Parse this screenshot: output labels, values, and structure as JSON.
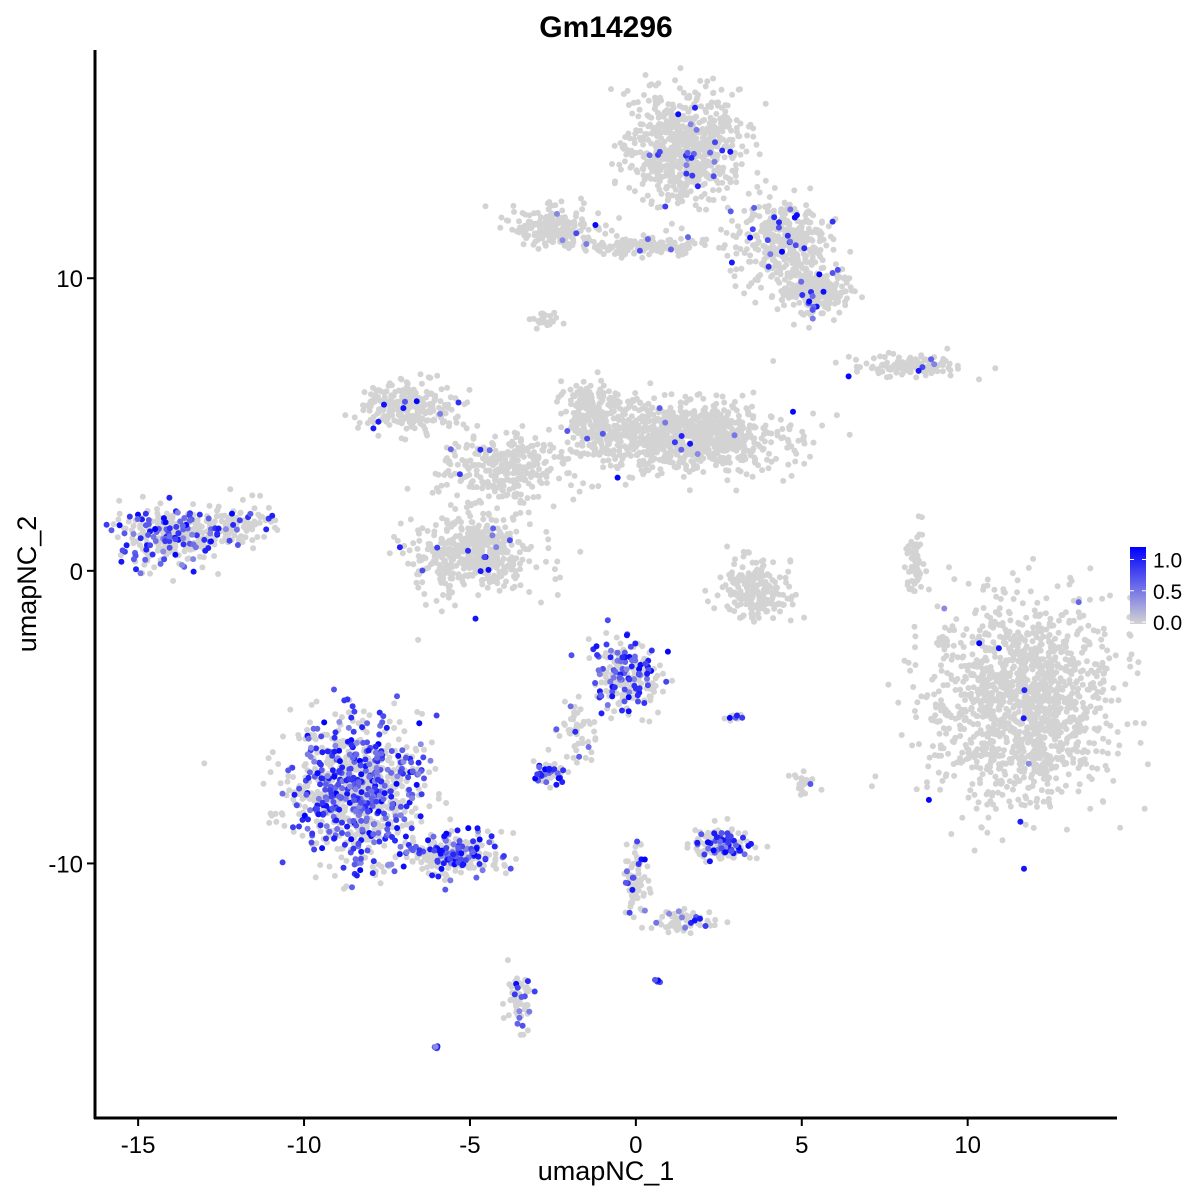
{
  "chart_data": {
    "type": "scatter",
    "title": "Gm14296",
    "xlabel": "umapNC_1",
    "ylabel": "umapNC_2",
    "xlim": [
      -16.3,
      14.5
    ],
    "ylim": [
      -18.7,
      17.8
    ],
    "xticks": [
      -15,
      -10,
      -5,
      0,
      5,
      10
    ],
    "yticks": [
      -10,
      0,
      10
    ],
    "xtick_labels": [
      "-15",
      "-10",
      "-5",
      "0",
      "5",
      "10"
    ],
    "ytick_labels": [
      "-10",
      "0",
      "10"
    ],
    "grid": false,
    "legend": {
      "position": "right",
      "type": "colorbar",
      "low_color": "#d3d3d3",
      "high_color": "#0000ff",
      "range": [
        0,
        1.2
      ],
      "breaks": [
        0.0,
        0.5,
        1.0
      ],
      "labels": [
        "0.0",
        "0.5",
        "1.0"
      ]
    },
    "clusters": [
      {
        "center": [
          1.4,
          14.5
        ],
        "spread": [
          1.4,
          1.6
        ],
        "n": 700,
        "expr_frac": 0.03
      },
      {
        "center": [
          4.5,
          11.2
        ],
        "spread": [
          1.1,
          1.2
        ],
        "n": 400,
        "expr_frac": 0.05
      },
      {
        "center": [
          5.4,
          9.5
        ],
        "spread": [
          0.9,
          0.6
        ],
        "n": 200,
        "expr_frac": 0.06
      },
      {
        "center": [
          -2.3,
          11.7
        ],
        "spread": [
          1.1,
          0.6
        ],
        "n": 200,
        "expr_frac": 0.03
      },
      {
        "center": [
          0.3,
          11.1
        ],
        "spread": [
          1.6,
          0.25
        ],
        "n": 150,
        "expr_frac": 0.02
      },
      {
        "center": [
          -2.7,
          8.6
        ],
        "spread": [
          0.3,
          0.2
        ],
        "n": 25,
        "expr_frac": 0.0
      },
      {
        "center": [
          8.3,
          7.0
        ],
        "spread": [
          1.5,
          0.3
        ],
        "n": 120,
        "expr_frac": 0.03
      },
      {
        "center": [
          1.5,
          4.6
        ],
        "spread": [
          2.3,
          1.0
        ],
        "n": 900,
        "expr_frac": 0.01
      },
      {
        "center": [
          -1.3,
          5.3
        ],
        "spread": [
          0.7,
          1.0
        ],
        "n": 200,
        "expr_frac": 0.02
      },
      {
        "center": [
          -6.8,
          5.6
        ],
        "spread": [
          1.2,
          0.7
        ],
        "n": 250,
        "expr_frac": 0.03
      },
      {
        "center": [
          -4.0,
          3.5
        ],
        "spread": [
          1.6,
          1.0
        ],
        "n": 300,
        "expr_frac": 0.02
      },
      {
        "center": [
          -4.9,
          0.6
        ],
        "spread": [
          1.5,
          1.1
        ],
        "n": 500,
        "expr_frac": 0.03
      },
      {
        "center": [
          -14.0,
          1.2
        ],
        "spread": [
          1.3,
          0.9
        ],
        "n": 300,
        "expr_frac": 0.28
      },
      {
        "center": [
          -12.0,
          1.6
        ],
        "spread": [
          0.9,
          0.6
        ],
        "n": 100,
        "expr_frac": 0.05
      },
      {
        "center": [
          3.6,
          -0.6
        ],
        "spread": [
          0.9,
          0.8
        ],
        "n": 200,
        "expr_frac": 0.0
      },
      {
        "center": [
          8.4,
          0.2
        ],
        "spread": [
          0.25,
          1.0
        ],
        "n": 60,
        "expr_frac": 0.0
      },
      {
        "center": [
          11.6,
          -4.5
        ],
        "spread": [
          2.2,
          2.8
        ],
        "n": 1400,
        "expr_frac": 0.01
      },
      {
        "center": [
          -0.3,
          -3.6
        ],
        "spread": [
          0.9,
          1.0
        ],
        "n": 220,
        "expr_frac": 0.4
      },
      {
        "center": [
          -1.7,
          -5.6
        ],
        "spread": [
          0.5,
          0.9
        ],
        "n": 50,
        "expr_frac": 0.05
      },
      {
        "center": [
          -2.6,
          -6.9
        ],
        "spread": [
          0.4,
          0.3
        ],
        "n": 60,
        "expr_frac": 0.3
      },
      {
        "center": [
          -8.4,
          -7.5
        ],
        "spread": [
          1.6,
          2.0
        ],
        "n": 900,
        "expr_frac": 0.4
      },
      {
        "center": [
          -5.5,
          -9.7
        ],
        "spread": [
          1.2,
          0.6
        ],
        "n": 250,
        "expr_frac": 0.35
      },
      {
        "center": [
          2.6,
          -9.3
        ],
        "spread": [
          0.8,
          0.5
        ],
        "n": 150,
        "expr_frac": 0.3
      },
      {
        "center": [
          0.0,
          -10.6
        ],
        "spread": [
          0.3,
          1.2
        ],
        "n": 80,
        "expr_frac": 0.15
      },
      {
        "center": [
          1.5,
          -12.0
        ],
        "spread": [
          0.9,
          0.3
        ],
        "n": 60,
        "expr_frac": 0.1
      },
      {
        "center": [
          -3.5,
          -14.8
        ],
        "spread": [
          0.3,
          0.7
        ],
        "n": 60,
        "expr_frac": 0.2
      },
      {
        "center": [
          -6.0,
          -16.3
        ],
        "spread": [
          0.1,
          0.05
        ],
        "n": 8,
        "expr_frac": 1.0
      },
      {
        "center": [
          0.7,
          -14.0
        ],
        "spread": [
          0.08,
          0.08
        ],
        "n": 6,
        "expr_frac": 0.8
      },
      {
        "center": [
          5.0,
          -7.3
        ],
        "spread": [
          0.3,
          0.3
        ],
        "n": 25,
        "expr_frac": 0.1
      },
      {
        "center": [
          3.0,
          -5.0
        ],
        "spread": [
          0.3,
          0.1
        ],
        "n": 15,
        "expr_frac": 0.3
      }
    ]
  }
}
